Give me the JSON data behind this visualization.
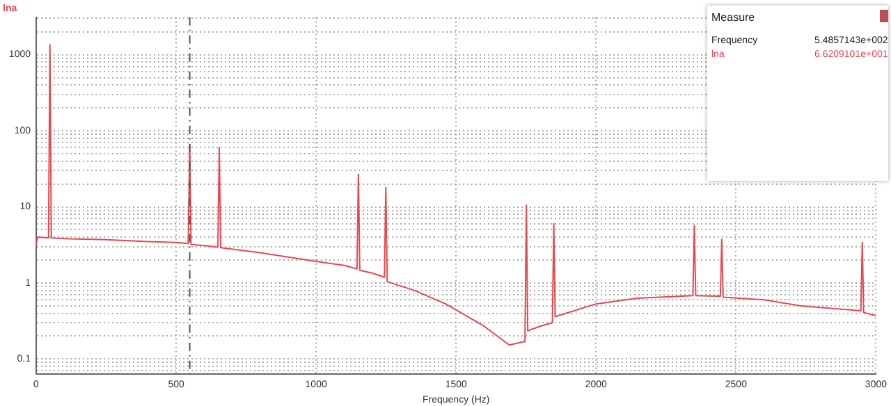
{
  "chart_data": {
    "type": "line",
    "title": "lna",
    "xlabel": "Frequency (Hz)",
    "x": [
      0,
      5,
      44,
      49,
      54,
      120,
      250,
      400,
      500,
      543,
      548.57,
      553,
      600,
      649,
      654,
      659,
      800,
      1000,
      1100,
      1146,
      1151,
      1156,
      1200,
      1244,
      1249,
      1254,
      1350,
      1463,
      1600,
      1690,
      1736,
      1746,
      1751,
      1756,
      1800,
      1844,
      1849,
      1854,
      2000,
      2146,
      2346,
      2351,
      2356,
      2444,
      2449,
      2454,
      2600,
      2732,
      2946,
      2951,
      2956,
      3000
    ],
    "series": [
      {
        "color": "#e8474f",
        "values": [
          3.2,
          4,
          3.9,
          1350,
          3.9,
          3.8,
          3.7,
          3.5,
          3.4,
          3.3,
          66.2,
          3.2,
          3.1,
          2.95,
          60,
          2.9,
          2.5,
          1.92,
          1.7,
          1.53,
          26.7,
          1.47,
          1.35,
          1.19,
          18,
          1.04,
          0.8,
          0.53,
          0.27,
          0.153,
          0.167,
          0.17,
          10.5,
          0.235,
          0.27,
          0.3,
          6,
          0.36,
          0.53,
          0.63,
          0.68,
          5.7,
          0.68,
          0.67,
          3.75,
          0.65,
          0.6,
          0.5,
          0.43,
          3.4,
          0.41,
          0.37
        ]
      }
    ],
    "xlim": [
      0,
      3000
    ],
    "xticks": [
      0,
      500,
      1000,
      1500,
      2000,
      2500,
      3000
    ],
    "ylim": [
      0.063,
      3100
    ],
    "log": true,
    "yticks": [
      {
        "value": 0.07,
        "label": null
      },
      {
        "value": 0.08,
        "label": null
      },
      {
        "value": 0.09,
        "label": null
      },
      0.1,
      {
        "value": 0.2,
        "label": null
      },
      {
        "value": 0.3,
        "label": null
      },
      {
        "value": 0.4,
        "label": null
      },
      {
        "value": 0.5,
        "label": null
      },
      {
        "value": 0.6,
        "label": null
      },
      {
        "value": 0.7,
        "label": null
      },
      {
        "value": 0.8,
        "label": null
      },
      {
        "value": 0.9,
        "label": null
      },
      1,
      {
        "value": 2,
        "label": null
      },
      {
        "value": 3,
        "label": null
      },
      {
        "value": 4,
        "label": null
      },
      {
        "value": 5,
        "label": null
      },
      {
        "value": 6,
        "label": null
      },
      {
        "value": 7,
        "label": null
      },
      {
        "value": 8,
        "label": null
      },
      {
        "value": 9,
        "label": null
      },
      10,
      {
        "value": 20,
        "label": null
      },
      {
        "value": 30,
        "label": null
      },
      {
        "value": 40,
        "label": null
      },
      {
        "value": 50,
        "label": null
      },
      {
        "value": 60,
        "label": null
      },
      {
        "value": 70,
        "label": null
      },
      {
        "value": 80,
        "label": null
      },
      {
        "value": 90,
        "label": null
      },
      100,
      {
        "value": 200,
        "label": null
      },
      {
        "value": 300,
        "label": null
      },
      {
        "value": 400,
        "label": null
      },
      {
        "value": 500,
        "label": null
      },
      {
        "value": 600,
        "label": null
      },
      {
        "value": 700,
        "label": null
      },
      {
        "value": 800,
        "label": null
      },
      {
        "value": 900,
        "label": null
      },
      1000,
      {
        "value": 2000,
        "label": null
      },
      {
        "value": 3000,
        "label": null
      }
    ],
    "grid": true,
    "legend": false,
    "marker": "none",
    "line_style": "solid",
    "ref_lines": [
      {
        "axis": "x",
        "value": 548.57,
        "color": "#555555",
        "line_style": "dashed"
      }
    ],
    "annotations": [
      "Measure",
      "Frequency",
      "5.4857143e+002",
      "lna",
      "6.6209101e+001"
    ]
  }
}
